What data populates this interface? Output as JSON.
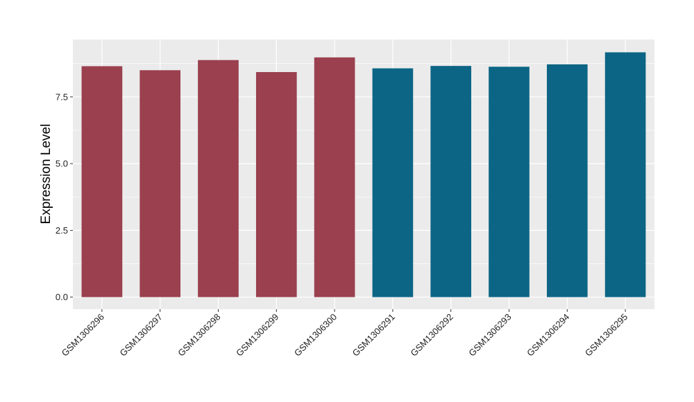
{
  "chart_data": {
    "type": "bar",
    "categories": [
      "GSM1306296",
      "GSM1306297",
      "GSM1306298",
      "GSM1306299",
      "GSM1306300",
      "GSM1306291",
      "GSM1306292",
      "GSM1306293",
      "GSM1306294",
      "GSM1306295"
    ],
    "values": [
      8.65,
      8.5,
      8.88,
      8.43,
      8.98,
      8.57,
      8.66,
      8.63,
      8.72,
      9.17
    ],
    "bar_colors": [
      "#9a404f",
      "#9a404f",
      "#9a404f",
      "#9a404f",
      "#9a404f",
      "#0d6585",
      "#0d6585",
      "#0d6585",
      "#0d6585",
      "#0d6585"
    ],
    "xlabel": "",
    "ylabel": "Expression Level",
    "ylim": [
      -0.45,
      9.65
    ],
    "yticks": [
      0,
      2.5,
      5,
      7.5
    ],
    "ytick_labels": [
      "0.0",
      "2.5",
      "5.0",
      "7.5"
    ],
    "grid": true,
    "legend": "none"
  },
  "colors": {
    "panel_background": "#ebebeb",
    "gridline": "#ffffff"
  }
}
